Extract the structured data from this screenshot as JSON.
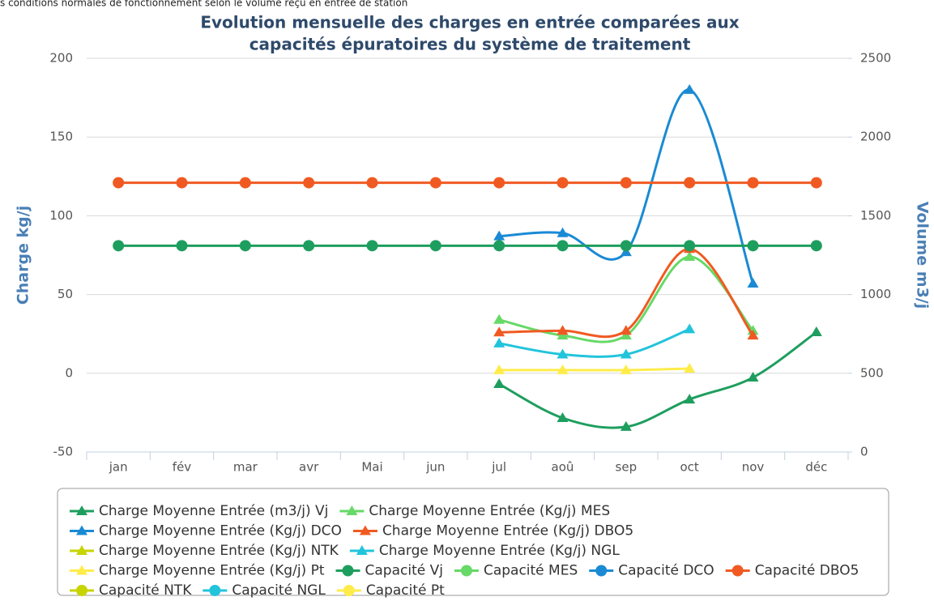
{
  "chart_data": {
    "type": "line",
    "note_text": "s conditions normales de fonctionnement selon le volume reçu en entrée de station",
    "title": [
      "Evolution mensuelle des charges en entrée comparées aux",
      "capacités épuratoires du système de traitement"
    ],
    "y_label": "Charge kg/j",
    "y2_label": "Volume m3/j",
    "categories": [
      "jan",
      "fév",
      "mar",
      "avr",
      "Mai",
      "jun",
      "jul",
      "aoû",
      "sep",
      "oct",
      "nov",
      "déc"
    ],
    "ylim": [
      -50,
      200
    ],
    "yticks": [
      -50,
      0,
      50,
      100,
      150,
      200
    ],
    "y2lim": [
      0,
      2500
    ],
    "y2ticks": [
      0,
      500,
      1000,
      1500,
      2000,
      2500
    ],
    "grid": true,
    "legend": "bottom",
    "series": [
      {
        "name": "Charge Moyenne Entrée (m3/j) Vj",
        "color": "#1e9e5e",
        "marker": "triangle",
        "axis": "y2",
        "values": [
          null,
          null,
          null,
          null,
          null,
          null,
          432,
          216,
          160,
          334,
          473,
          761
        ]
      },
      {
        "name": "Charge Moyenne Entrée (Kg/j) MES",
        "color": "#66d966",
        "marker": "triangle",
        "values": [
          null,
          null,
          null,
          null,
          null,
          null,
          34,
          24,
          24,
          74,
          27,
          null
        ]
      },
      {
        "name": "Charge Moyenne Entrée (Kg/j) DCO",
        "color": "#1a8ad4",
        "marker": "triangle",
        "values": [
          null,
          null,
          null,
          null,
          null,
          null,
          87,
          89,
          77,
          180,
          57,
          null
        ]
      },
      {
        "name": "Charge Moyenne Entrée (Kg/j) DBO5",
        "color": "#f05a22",
        "marker": "triangle",
        "values": [
          null,
          null,
          null,
          null,
          null,
          null,
          26,
          27,
          27,
          79,
          24,
          null
        ]
      },
      {
        "name": "Charge Moyenne Entrée (Kg/j) NTK",
        "color": "#c8d400",
        "marker": "triangle",
        "values": [
          null,
          null,
          null,
          null,
          null,
          null,
          null,
          null,
          null,
          null,
          null,
          null
        ]
      },
      {
        "name": "Charge Moyenne Entrée (Kg/j) NGL",
        "color": "#22c4dc",
        "marker": "triangle",
        "values": [
          null,
          null,
          null,
          null,
          null,
          null,
          19,
          12,
          12,
          28,
          null,
          null
        ]
      },
      {
        "name": "Charge Moyenne Entrée (Kg/j) Pt",
        "color": "#ffec4a",
        "marker": "triangle",
        "values": [
          null,
          null,
          null,
          null,
          null,
          null,
          2,
          2,
          2,
          3,
          null,
          null
        ]
      },
      {
        "name": "Capacité Vj",
        "color": "#1e9e5e",
        "marker": "circle",
        "values": [
          81,
          81,
          81,
          81,
          81,
          81,
          81,
          81,
          81,
          81,
          81,
          81
        ]
      },
      {
        "name": "Capacité MES",
        "color": "#66d966",
        "marker": "circle",
        "values": [
          null,
          null,
          null,
          null,
          null,
          null,
          null,
          null,
          null,
          null,
          null,
          null
        ]
      },
      {
        "name": "Capacité DCO",
        "color": "#1a8ad4",
        "marker": "circle",
        "values": [
          null,
          null,
          null,
          null,
          null,
          null,
          null,
          null,
          null,
          null,
          null,
          null
        ]
      },
      {
        "name": "Capacité DBO5",
        "color": "#f05a22",
        "marker": "circle",
        "values": [
          121,
          121,
          121,
          121,
          121,
          121,
          121,
          121,
          121,
          121,
          121,
          121
        ]
      },
      {
        "name": "Capacité NTK",
        "color": "#c8d400",
        "marker": "circle",
        "values": [
          null,
          null,
          null,
          null,
          null,
          null,
          null,
          null,
          null,
          null,
          null,
          null
        ]
      },
      {
        "name": "Capacité NGL",
        "color": "#22c4dc",
        "marker": "circle",
        "values": [
          null,
          null,
          null,
          null,
          null,
          null,
          null,
          null,
          null,
          null,
          null,
          null
        ]
      },
      {
        "name": "Capacité Pt",
        "color": "#ffec4a",
        "marker": "circle",
        "values": [
          null,
          null,
          null,
          null,
          null,
          null,
          null,
          null,
          null,
          null,
          null,
          null
        ]
      }
    ]
  }
}
